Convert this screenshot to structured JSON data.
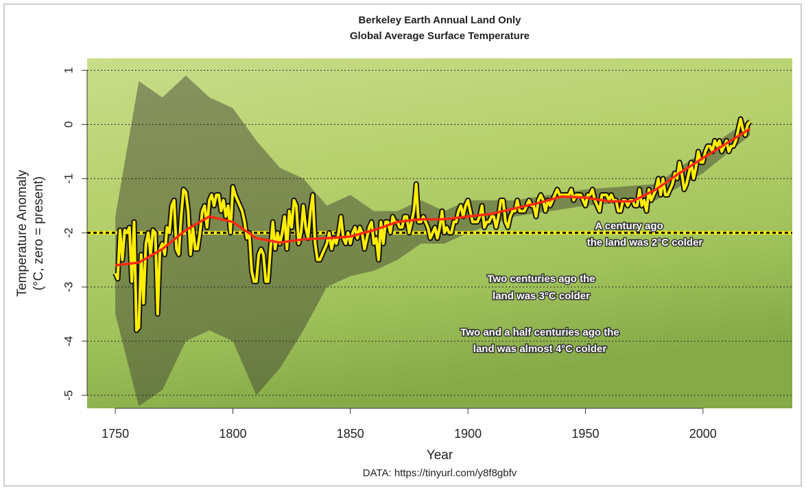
{
  "chart_data": {
    "type": "line",
    "title": "Berkeley Earth Annual Land Only",
    "subtitle": "Global Average Surface Temperature",
    "x_label": "Year",
    "y_label": "Temperature Anomaly",
    "y_label_sub": "(°C, zero = present)",
    "source": "DATA: https://tinyurl.com/y8f8gbfv",
    "xlim": [
      1738,
      2038
    ],
    "ylim": [
      -5.24,
      1.22
    ],
    "xticks": [
      1750,
      1800,
      1850,
      1900,
      1950,
      2000
    ],
    "yticks": [
      -5,
      -4,
      -3,
      -2,
      -1,
      0,
      1
    ],
    "grid": true,
    "reference_line": -2,
    "x": [
      1750,
      1751,
      1752,
      1753,
      1754,
      1755,
      1756,
      1757,
      1758,
      1759,
      1760,
      1761,
      1762,
      1763,
      1764,
      1765,
      1766,
      1767,
      1768,
      1769,
      1770,
      1771,
      1772,
      1773,
      1774,
      1775,
      1776,
      1777,
      1778,
      1779,
      1780,
      1781,
      1782,
      1783,
      1784,
      1785,
      1786,
      1787,
      1788,
      1789,
      1790,
      1791,
      1792,
      1793,
      1794,
      1795,
      1796,
      1797,
      1798,
      1799,
      1800,
      1801,
      1802,
      1803,
      1804,
      1805,
      1806,
      1807,
      1808,
      1809,
      1810,
      1811,
      1812,
      1813,
      1814,
      1815,
      1816,
      1817,
      1818,
      1819,
      1820,
      1821,
      1822,
      1823,
      1824,
      1825,
      1826,
      1827,
      1828,
      1829,
      1830,
      1831,
      1832,
      1833,
      1834,
      1835,
      1836,
      1837,
      1838,
      1839,
      1840,
      1841,
      1842,
      1843,
      1844,
      1845,
      1846,
      1847,
      1848,
      1849,
      1850,
      1851,
      1852,
      1853,
      1854,
      1855,
      1856,
      1857,
      1858,
      1859,
      1860,
      1861,
      1862,
      1863,
      1864,
      1865,
      1866,
      1867,
      1868,
      1869,
      1870,
      1871,
      1872,
      1873,
      1874,
      1875,
      1876,
      1877,
      1878,
      1879,
      1880,
      1881,
      1882,
      1883,
      1884,
      1885,
      1886,
      1887,
      1888,
      1889,
      1890,
      1891,
      1892,
      1893,
      1894,
      1895,
      1896,
      1897,
      1898,
      1899,
      1900,
      1901,
      1902,
      1903,
      1904,
      1905,
      1906,
      1907,
      1908,
      1909,
      1910,
      1911,
      1912,
      1913,
      1914,
      1915,
      1916,
      1917,
      1918,
      1919,
      1920,
      1921,
      1922,
      1923,
      1924,
      1925,
      1926,
      1927,
      1928,
      1929,
      1930,
      1931,
      1932,
      1933,
      1934,
      1935,
      1936,
      1937,
      1938,
      1939,
      1940,
      1941,
      1942,
      1943,
      1944,
      1945,
      1946,
      1947,
      1948,
      1949,
      1950,
      1951,
      1952,
      1953,
      1954,
      1955,
      1956,
      1957,
      1958,
      1959,
      1960,
      1961,
      1962,
      1963,
      1964,
      1965,
      1966,
      1967,
      1968,
      1969,
      1970,
      1971,
      1972,
      1973,
      1974,
      1975,
      1976,
      1977,
      1978,
      1979,
      1980,
      1981,
      1982,
      1983,
      1984,
      1985,
      1986,
      1987,
      1988,
      1989,
      1990,
      1991,
      1992,
      1993,
      1994,
      1995,
      1996,
      1997,
      1998,
      1999,
      2000,
      2001,
      2002,
      2003,
      2004,
      2005,
      2006,
      2007,
      2008,
      2009,
      2010,
      2011,
      2012,
      2013,
      2014,
      2015,
      2016,
      2017,
      2018,
      2019,
      2020
    ],
    "annual": {
      "color": "#ffee00",
      "values": [
        -2.75,
        -2.85,
        -1.95,
        -2.5,
        -1.95,
        -2.0,
        -1.9,
        -2.9,
        -1.8,
        -3.8,
        -3.75,
        -2.4,
        -3.3,
        -2.2,
        -2.0,
        -2.4,
        -1.95,
        -2.0,
        -3.5,
        -2.3,
        -2.2,
        -2.4,
        -1.9,
        -2.0,
        -1.5,
        -1.4,
        -2.3,
        -2.4,
        -1.7,
        -1.2,
        -1.25,
        -1.6,
        -2.4,
        -1.9,
        -2.3,
        -2.3,
        -2.0,
        -1.6,
        -1.5,
        -1.9,
        -1.4,
        -1.3,
        -1.5,
        -1.3,
        -1.3,
        -1.6,
        -1.4,
        -1.7,
        -1.5,
        -2.0,
        -1.15,
        -1.3,
        -1.4,
        -1.5,
        -1.6,
        -1.8,
        -2.1,
        -2.0,
        -2.7,
        -2.9,
        -2.9,
        -2.4,
        -2.3,
        -2.4,
        -2.9,
        -2.9,
        -2.3,
        -1.8,
        -2.3,
        -2.0,
        -2.2,
        -2.0,
        -1.7,
        -2.3,
        -1.6,
        -1.9,
        -1.4,
        -1.5,
        -2.2,
        -2.0,
        -1.5,
        -1.9,
        -2.1,
        -1.6,
        -1.3,
        -2.2,
        -2.5,
        -2.5,
        -2.4,
        -2.3,
        -2.2,
        -2.0,
        -2.3,
        -2.1,
        -2.2,
        -2.0,
        -1.7,
        -2.1,
        -2.2,
        -2.0,
        -2.2,
        -2.0,
        -1.9,
        -2.1,
        -1.9,
        -2.0,
        -2.3,
        -2.1,
        -1.9,
        -1.8,
        -2.2,
        -2.1,
        -2.5,
        -1.8,
        -2.2,
        -1.8,
        -1.8,
        -2.0,
        -1.7,
        -1.8,
        -1.8,
        -1.9,
        -1.9,
        -1.7,
        -1.7,
        -2.0,
        -1.8,
        -1.6,
        -1.1,
        -1.8,
        -1.8,
        -1.7,
        -1.8,
        -1.9,
        -2.1,
        -2.0,
        -1.9,
        -2.1,
        -1.9,
        -1.6,
        -2.0,
        -1.9,
        -2.0,
        -2.0,
        -1.8,
        -1.8,
        -1.6,
        -1.5,
        -1.7,
        -1.5,
        -1.4,
        -1.6,
        -1.8,
        -1.8,
        -1.8,
        -1.7,
        -1.5,
        -1.9,
        -1.8,
        -1.8,
        -1.7,
        -1.7,
        -1.9,
        -1.7,
        -1.4,
        -1.4,
        -1.8,
        -1.9,
        -1.7,
        -1.6,
        -1.6,
        -1.4,
        -1.6,
        -1.6,
        -1.6,
        -1.5,
        -1.4,
        -1.5,
        -1.5,
        -1.7,
        -1.4,
        -1.3,
        -1.4,
        -1.6,
        -1.4,
        -1.5,
        -1.4,
        -1.3,
        -1.2,
        -1.3,
        -1.3,
        -1.3,
        -1.3,
        -1.3,
        -1.2,
        -1.4,
        -1.3,
        -1.3,
        -1.3,
        -1.4,
        -1.5,
        -1.3,
        -1.3,
        -1.2,
        -1.4,
        -1.5,
        -1.6,
        -1.3,
        -1.3,
        -1.3,
        -1.4,
        -1.3,
        -1.4,
        -1.4,
        -1.6,
        -1.6,
        -1.4,
        -1.4,
        -1.5,
        -1.4,
        -1.4,
        -1.5,
        -1.5,
        -1.2,
        -1.5,
        -1.4,
        -1.6,
        -1.2,
        -1.4,
        -1.3,
        -1.2,
        -1.0,
        -1.3,
        -1.0,
        -1.3,
        -1.3,
        -1.2,
        -1.1,
        -0.9,
        -1.0,
        -0.7,
        -0.9,
        -1.2,
        -1.1,
        -0.9,
        -0.7,
        -1.0,
        -0.8,
        -0.5,
        -0.7,
        -0.7,
        -0.5,
        -0.4,
        -0.4,
        -0.5,
        -0.3,
        -0.4,
        -0.3,
        -0.5,
        -0.4,
        -0.3,
        -0.5,
        -0.4,
        -0.4,
        -0.3,
        -0.1,
        0.1,
        -0.1,
        -0.2,
        0.0,
        0.05
      ]
    },
    "smooth": {
      "color": "#ff2a10",
      "x": [
        1750,
        1760,
        1770,
        1780,
        1790,
        1800,
        1810,
        1820,
        1830,
        1840,
        1850,
        1860,
        1870,
        1880,
        1890,
        1900,
        1910,
        1920,
        1930,
        1940,
        1950,
        1960,
        1970,
        1980,
        1990,
        2000,
        2010,
        2020
      ],
      "values": [
        -2.6,
        -2.55,
        -2.3,
        -1.95,
        -1.7,
        -1.8,
        -2.1,
        -2.18,
        -2.12,
        -2.1,
        -2.07,
        -1.95,
        -1.8,
        -1.75,
        -1.75,
        -1.7,
        -1.65,
        -1.55,
        -1.45,
        -1.33,
        -1.35,
        -1.42,
        -1.42,
        -1.2,
        -0.9,
        -0.62,
        -0.35,
        -0.08
      ]
    },
    "uncertainty": {
      "color": "#3a3a30",
      "x": [
        1750,
        1760,
        1770,
        1780,
        1790,
        1800,
        1810,
        1820,
        1830,
        1840,
        1850,
        1860,
        1870,
        1880,
        1890,
        1900,
        1920,
        1950,
        1980,
        2000,
        2020
      ],
      "upper": [
        -1.7,
        0.8,
        0.5,
        0.9,
        0.5,
        0.3,
        -0.3,
        -0.8,
        -1.0,
        -1.5,
        -1.3,
        -1.6,
        -1.6,
        -1.4,
        -1.6,
        -1.4,
        -1.4,
        -1.2,
        -1.1,
        -0.5,
        0.1
      ],
      "lower": [
        -3.5,
        -5.2,
        -4.9,
        -4.0,
        -3.8,
        -4.0,
        -5.0,
        -4.5,
        -3.8,
        -3.0,
        -2.8,
        -2.7,
        -2.5,
        -2.2,
        -2.2,
        -2.0,
        -1.7,
        -1.5,
        -1.4,
        -0.9,
        -0.2
      ]
    },
    "annotations": [
      "A century ago",
      "the land was 2°C colder",
      "Two centuries ago the",
      "land was 3°C colder",
      "Two and a half centuries ago the",
      "land was almost 4°C colder"
    ]
  }
}
